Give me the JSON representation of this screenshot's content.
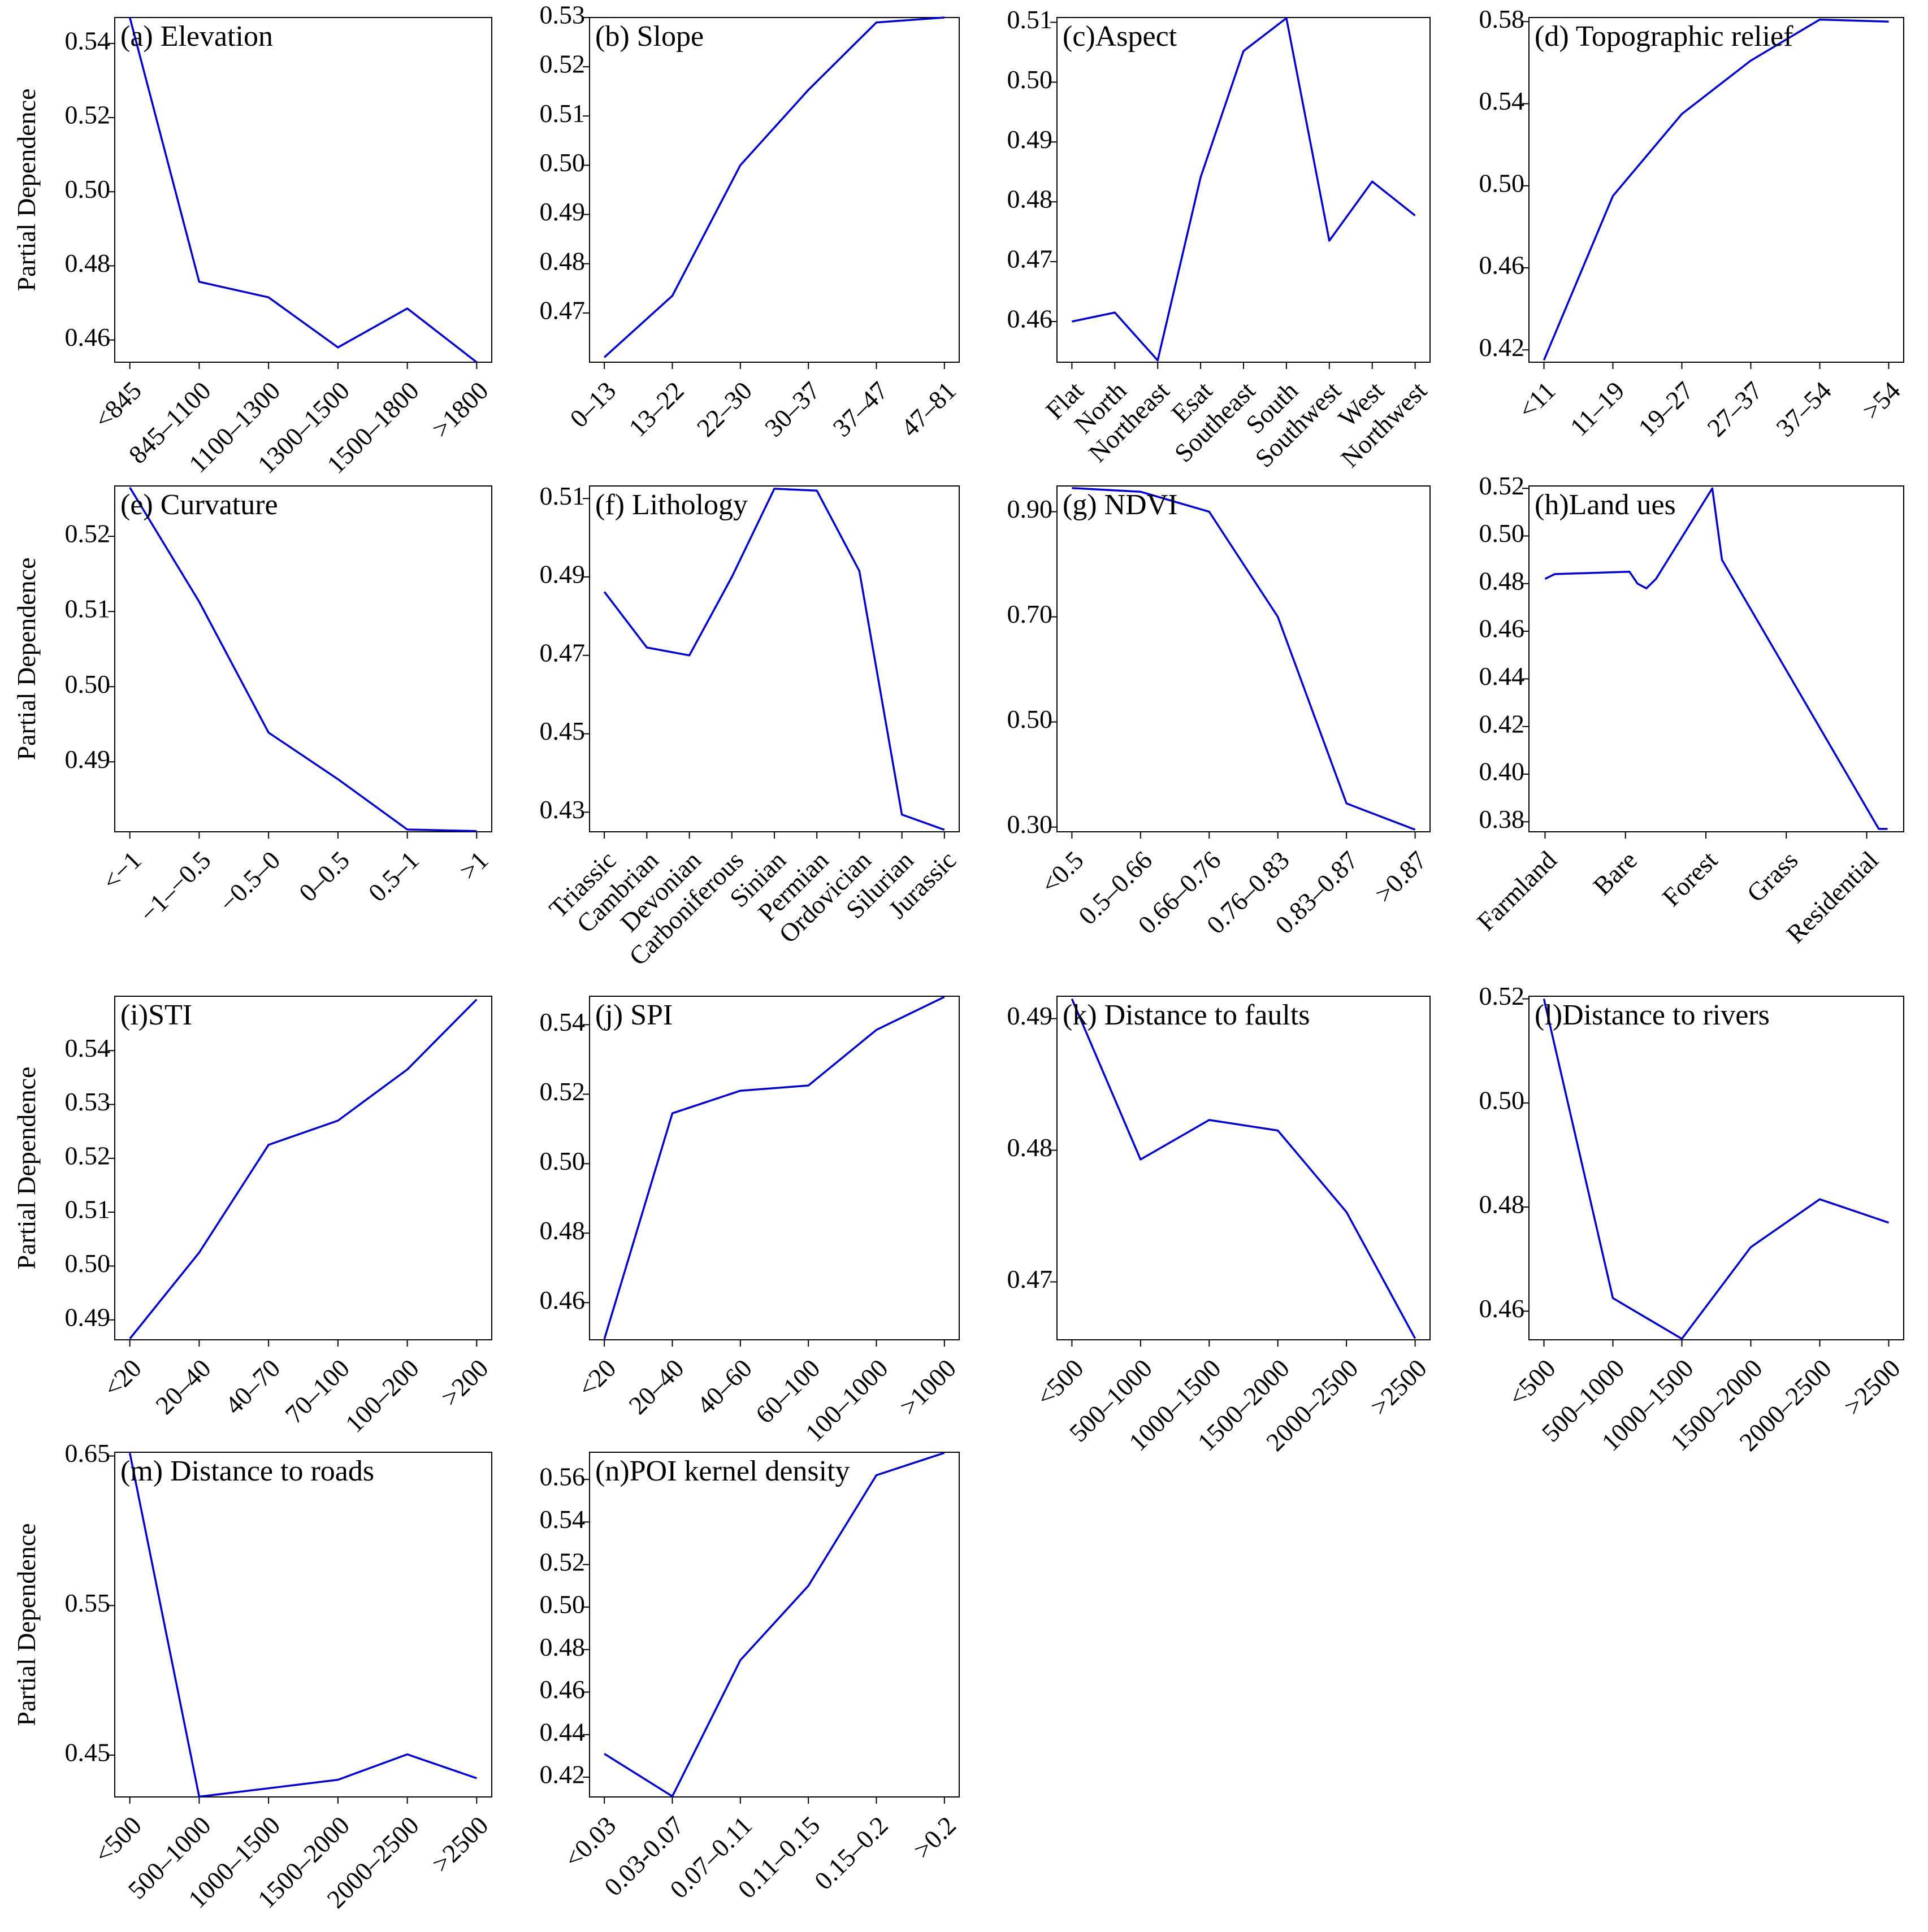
{
  "chart_data": [
    {
      "type": "line",
      "title": "(a) Elevation",
      "ylabel": "Partial Dependence",
      "color": "#0000cc",
      "categories": [
        "<845",
        "845–1100",
        "1100–1300",
        "1300–1500",
        "1500–1800",
        ">1800"
      ],
      "values": [
        0.547,
        0.4757,
        0.4715,
        0.458,
        0.4685,
        0.454
      ],
      "ylim": [
        0.454,
        0.547
      ],
      "yticks": [
        0.46,
        0.48,
        {
          "value": 0.5,
          "label": "0.50"
        },
        0.52,
        0.54
      ]
    },
    {
      "type": "line",
      "title": "(b) Slope",
      "color": "#0000cc",
      "categories": [
        "0–13",
        "13–22",
        "22–30",
        "30–37",
        "37–47",
        "47–81"
      ],
      "values": [
        0.461,
        0.4735,
        0.5,
        0.5153,
        0.529,
        0.53
      ],
      "ylim": [
        0.46,
        0.53
      ],
      "yticks": [
        0.47,
        0.48,
        0.49,
        {
          "value": 0.5,
          "label": "0.50"
        },
        0.51,
        0.52,
        0.53
      ]
    },
    {
      "type": "line",
      "title": "(c)Aspect",
      "color": "#0000cc",
      "categories": [
        "Flat",
        "North",
        "Northeast",
        "Esat",
        "Southeast",
        "South",
        "Southwest",
        "West",
        "Northwest"
      ],
      "values": [
        0.46,
        0.4615,
        0.4535,
        0.4841,
        0.5052,
        0.5107,
        0.4735,
        0.4834,
        0.4777
      ],
      "ylim": [
        0.4532,
        0.5108
      ],
      "yticks": [
        0.46,
        0.47,
        0.48,
        0.49,
        {
          "value": 0.5,
          "label": "0.50"
        },
        0.51
      ]
    },
    {
      "type": "line",
      "title": "(d) Topographic relief",
      "color": "#0000cc",
      "categories": [
        "<11",
        "11–19",
        "19–27",
        "27–37",
        "37–54",
        ">54"
      ],
      "values": [
        0.415,
        0.495,
        0.535,
        0.561,
        0.581,
        0.58
      ],
      "ylim": [
        0.414,
        0.582
      ],
      "yticks": [
        0.42,
        0.46,
        {
          "value": 0.5,
          "label": "0.50"
        },
        0.54,
        0.58
      ]
    },
    {
      "type": "line",
      "title": "(e) Curvature",
      "ylabel": "Partial Dependence",
      "color": "#0000cc",
      "categories": [
        "<−1",
        "−1–−0.5",
        "−0.5–0",
        "0–0.5",
        "0.5–1",
        ">1"
      ],
      "values": [
        0.5265,
        0.5113,
        0.4939,
        0.4877,
        0.481,
        0.4808
      ],
      "ylim": [
        0.4807,
        0.5267
      ],
      "yticks": [
        0.49,
        {
          "value": 0.5,
          "label": "0.50"
        },
        0.51,
        0.52
      ]
    },
    {
      "type": "line",
      "title": "(f) Lithology",
      "color": "#0000cc",
      "categories": [
        "Triassic",
        "Cambrian",
        "Devonian",
        "Carboniferous",
        "Sinian",
        "Permian",
        "Ordovician",
        "Silurian",
        "Jurassic"
      ],
      "values": [
        0.4862,
        0.472,
        0.47,
        0.49,
        0.5125,
        0.512,
        0.4915,
        0.4294,
        0.4255
      ],
      "ylim": [
        0.425,
        0.5132
      ],
      "yticks": [
        0.43,
        0.45,
        0.47,
        0.49,
        0.51
      ]
    },
    {
      "type": "line",
      "title": "(g) NDVI",
      "color": "#0000cc",
      "categories": [
        "<0.5",
        "0.5–0.66",
        "0.66–0.76",
        "0.76–0.83",
        "0.83–0.87",
        ">0.87"
      ],
      "values": [
        0.945,
        0.938,
        0.9,
        0.7,
        0.345,
        0.295
      ],
      "ylim": [
        0.291,
        0.949
      ],
      "yticks": [
        {
          "value": 0.3,
          "label": "0.30"
        },
        {
          "value": 0.5,
          "label": "0.50"
        },
        {
          "value": 0.7,
          "label": "0.70"
        },
        {
          "value": 0.9,
          "label": "0.90"
        }
      ]
    },
    {
      "type": "line",
      "title": "(h)Land ues",
      "color": "#0000cc",
      "x": [
        0,
        0.12,
        1.05,
        1.15,
        1.26,
        1.38,
        2.08,
        2.2,
        4.15,
        4.26
      ],
      "values": [
        0.482,
        0.484,
        0.485,
        0.48,
        0.478,
        0.482,
        0.52,
        0.49,
        0.377,
        0.377
      ],
      "xlim": [
        -0.2,
        4.46
      ],
      "xticks": [
        {
          "value": 0,
          "label": "Farmland"
        },
        {
          "value": 1,
          "label": "Bare"
        },
        {
          "value": 2,
          "label": "Forest"
        },
        {
          "value": 3,
          "label": "Grass"
        },
        {
          "value": 4,
          "label": "Residential"
        }
      ],
      "ylim": [
        0.3758,
        0.521
      ],
      "yticks": [
        0.38,
        {
          "value": 0.4,
          "label": "0.40"
        },
        0.42,
        0.44,
        0.46,
        0.48,
        {
          "value": 0.5,
          "label": "0.50"
        },
        0.52
      ]
    },
    {
      "type": "line",
      "title": "(i)STI",
      "ylabel": "Partial Dependence",
      "color": "#0000cc",
      "categories": [
        "<20",
        "20–40",
        "40–70",
        "70–100",
        "100–200",
        ">200"
      ],
      "values": [
        0.4865,
        0.5025,
        0.5225,
        0.527,
        0.5365,
        0.5495
      ],
      "ylim": [
        0.4863,
        0.5501
      ],
      "yticks": [
        0.49,
        {
          "value": 0.5,
          "label": "0.50"
        },
        0.51,
        0.52,
        0.53,
        0.54
      ]
    },
    {
      "type": "line",
      "title": "(j) SPI",
      "color": "#0000cc",
      "categories": [
        "<20",
        "20–40",
        "40–60",
        "60–100",
        "100–1000",
        ">1000"
      ],
      "values": [
        0.4495,
        0.5145,
        0.521,
        0.5225,
        0.5385,
        0.548
      ],
      "ylim": [
        0.4493,
        0.5482
      ],
      "yticks": [
        0.46,
        0.48,
        {
          "value": 0.5,
          "label": "0.50"
        },
        0.52,
        0.54
      ]
    },
    {
      "type": "line",
      "title": "(k) Distance to faults",
      "color": "#0000cc",
      "categories": [
        "<500",
        "500–1000",
        "1000–1500",
        "1500–2000",
        "2000–2500",
        ">2500"
      ],
      "values": [
        0.4915,
        0.4793,
        0.4823,
        0.4815,
        0.4753,
        0.4657
      ],
      "ylim": [
        0.4656,
        0.4917
      ],
      "yticks": [
        0.47,
        0.48,
        0.49
      ]
    },
    {
      "type": "line",
      "title": "(l)Distance to rivers",
      "color": "#0000cc",
      "categories": [
        "<500",
        "500–1000",
        "1000–1500",
        "1500–2000",
        "2000–2500",
        ">2500"
      ],
      "values": [
        0.52,
        0.4625,
        0.4547,
        0.4723,
        0.4815,
        0.477
      ],
      "ylim": [
        0.4545,
        0.5205
      ],
      "yticks": [
        0.46,
        0.48,
        {
          "value": 0.5,
          "label": "0.50"
        },
        0.52
      ]
    },
    {
      "type": "line",
      "title": "(m) Distance to roads",
      "ylabel": "Partial Dependence",
      "color": "#0000cc",
      "categories": [
        "<500",
        "500–1000",
        "1000–1500",
        "1500–2000",
        "2000–2500",
        ">2500"
      ],
      "values": [
        0.652,
        0.4222,
        0.4278,
        0.4335,
        0.4505,
        0.4345
      ],
      "ylim": [
        0.422,
        0.6525
      ],
      "yticks": [
        0.45,
        0.55,
        0.65
      ]
    },
    {
      "type": "line",
      "title": "(n)POI kernel density",
      "color": "#0000cc",
      "categories": [
        "<0.03",
        "0.03-0.07",
        "0.07–0.11",
        "0.11–0.15",
        "0.15–0.2",
        ">0.2"
      ],
      "values": [
        0.431,
        0.411,
        0.475,
        0.51,
        0.562,
        0.5725
      ],
      "ylim": [
        0.4107,
        0.5728
      ],
      "yticks": [
        0.42,
        0.44,
        0.46,
        0.48,
        {
          "value": 0.5,
          "label": "0.50"
        },
        0.52,
        0.54,
        0.56
      ]
    }
  ]
}
